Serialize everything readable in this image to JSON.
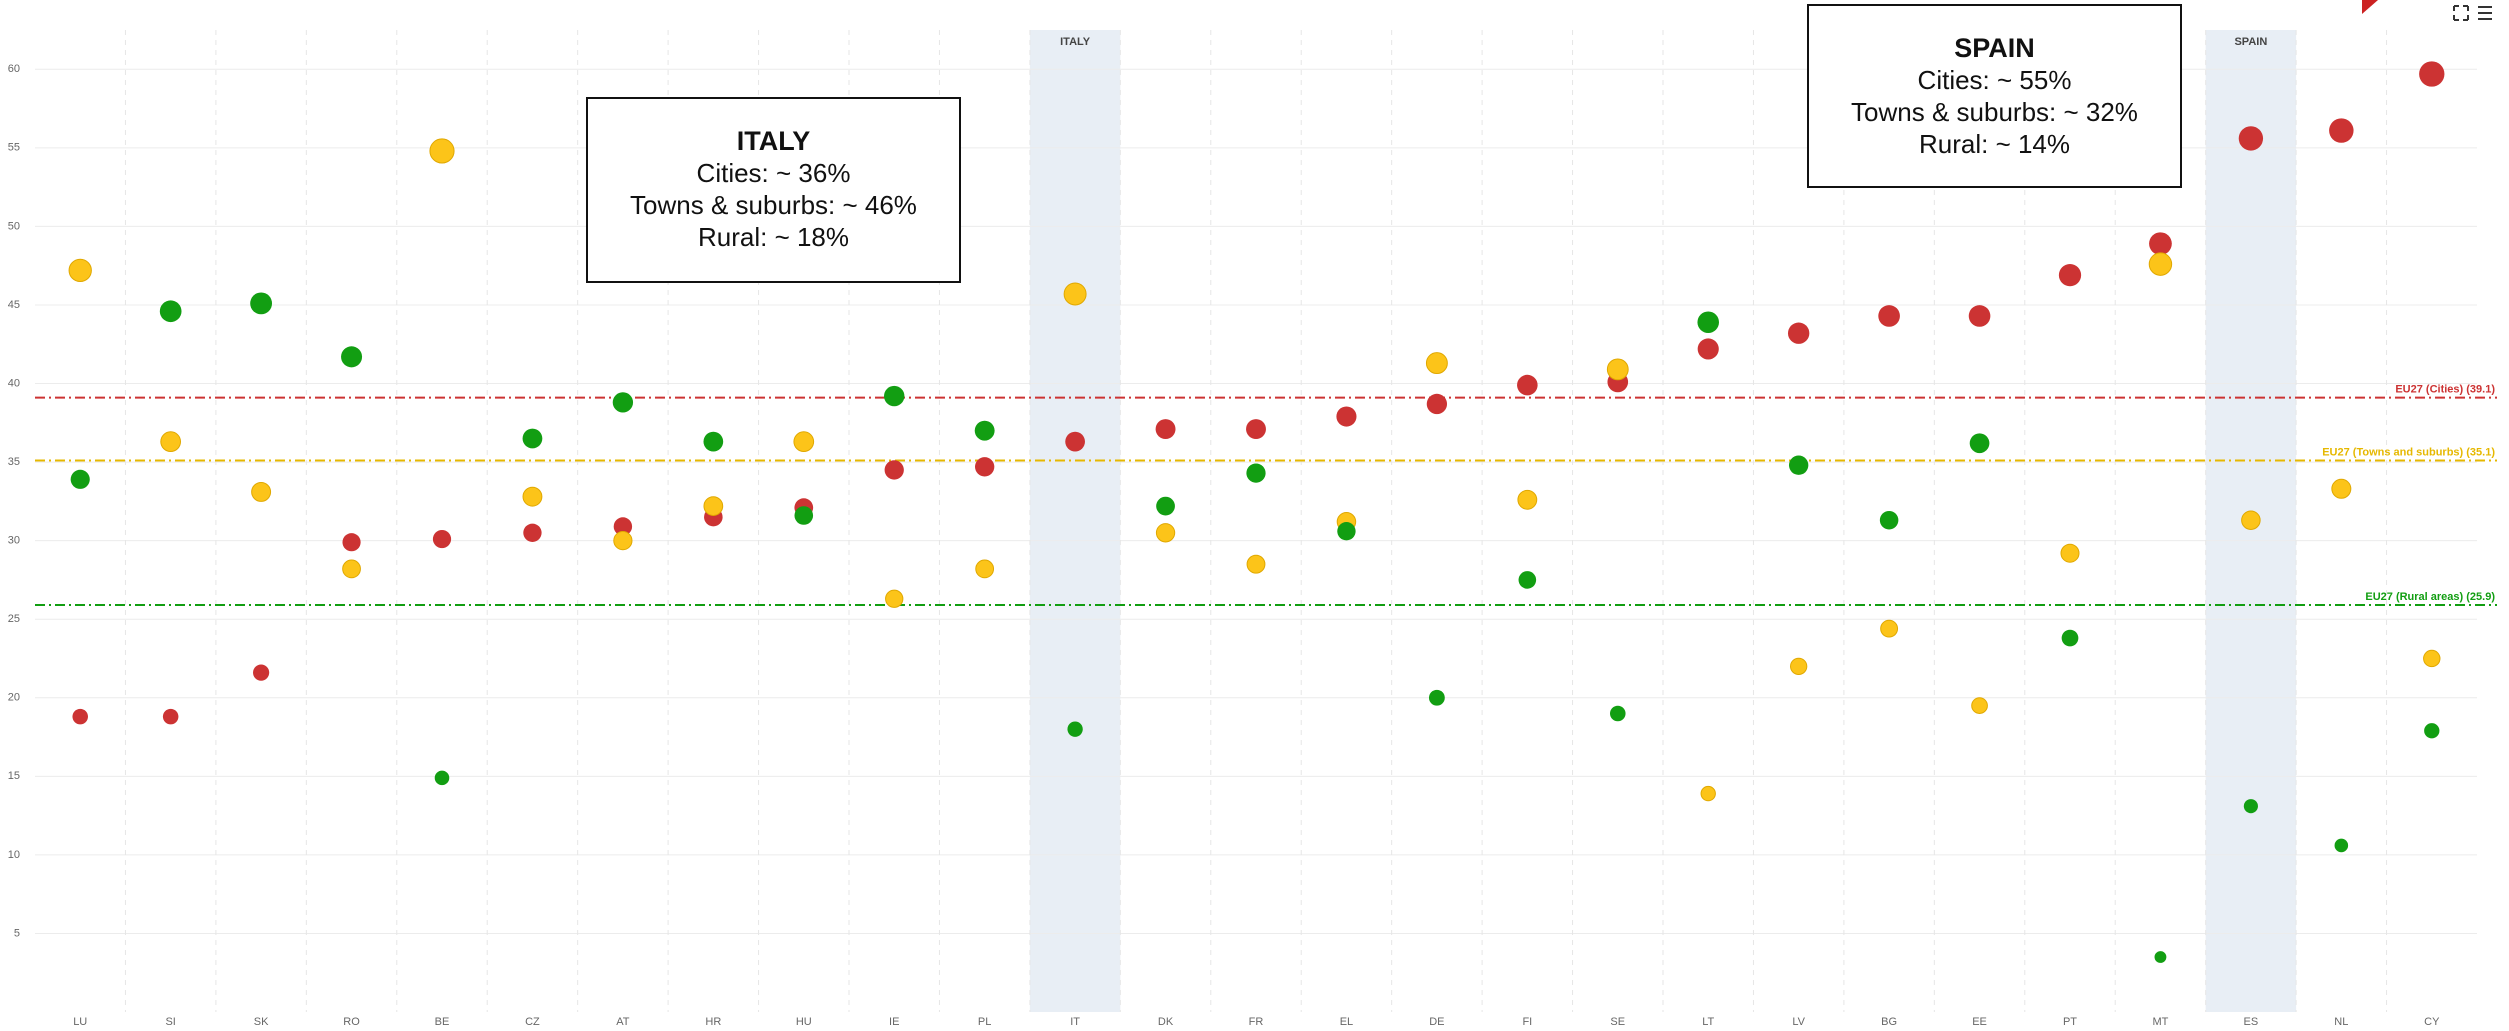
{
  "chart_data": {
    "type": "scatter",
    "categories": [
      "LU",
      "SI",
      "SK",
      "RO",
      "BE",
      "CZ",
      "AT",
      "HR",
      "HU",
      "IE",
      "PL",
      "IT",
      "DK",
      "FR",
      "EL",
      "DE",
      "FI",
      "SE",
      "LT",
      "LV",
      "BG",
      "EE",
      "PT",
      "MT",
      "ES",
      "NL",
      "CY"
    ],
    "series": [
      {
        "color": "#cc3333",
        "values": [
          18.8,
          18.8,
          21.6,
          29.9,
          30.1,
          30.5,
          30.9,
          31.5,
          32.1,
          34.5,
          34.7,
          36.3,
          37.1,
          37.1,
          37.9,
          38.7,
          39.9,
          40.1,
          42.2,
          43.2,
          44.3,
          44.3,
          46.9,
          48.9,
          55.6,
          56.1,
          59.7
        ]
      },
      {
        "color": "#fcc419",
        "values": [
          47.2,
          36.3,
          33.1,
          28.2,
          54.8,
          32.8,
          30.0,
          32.2,
          36.3,
          26.3,
          28.2,
          45.7,
          30.5,
          28.5,
          31.2,
          41.3,
          32.6,
          40.9,
          13.9,
          22.0,
          24.4,
          19.5,
          29.2,
          47.6,
          31.3,
          33.3,
          22.5
        ]
      },
      {
        "color": "#129e12",
        "values": [
          33.9,
          44.6,
          45.1,
          41.7,
          14.9,
          36.5,
          38.8,
          36.3,
          31.6,
          39.2,
          37.0,
          18.0,
          32.2,
          34.3,
          30.6,
          20.0,
          27.5,
          19.0,
          43.9,
          34.8,
          31.3,
          36.2,
          23.8,
          3.5,
          13.1,
          10.6,
          17.9
        ]
      }
    ],
    "ylim": [
      0,
      62.5
    ],
    "yticks": [
      5,
      10,
      15,
      20,
      25,
      30,
      35,
      40,
      45,
      50,
      55,
      60
    ],
    "grid": true,
    "reference_lines": [
      {
        "label": "EU27 (Cities) (39.1)",
        "value": 39.1,
        "color": "#cc3333"
      },
      {
        "label": "EU27 (Towns and suburbs) (35.1)",
        "value": 35.1,
        "color": "#e6b800"
      },
      {
        "label": "EU27 (Rural areas) (25.9)",
        "value": 25.9,
        "color": "#129e12"
      }
    ],
    "highlights": [
      {
        "category_index": 11,
        "label": "ITALY"
      },
      {
        "category_index": 24,
        "label": "SPAIN"
      }
    ],
    "annotations": [
      {
        "title": "ITALY",
        "lines": [
          "Cities: ~ 36%",
          "Towns & suburbs: ~ 46%",
          "Rural: ~ 18%"
        ]
      },
      {
        "title": "SPAIN",
        "lines": [
          "Cities: ~ 55%",
          "Towns & suburbs: ~ 32%",
          "Rural: ~ 14%"
        ]
      }
    ]
  }
}
